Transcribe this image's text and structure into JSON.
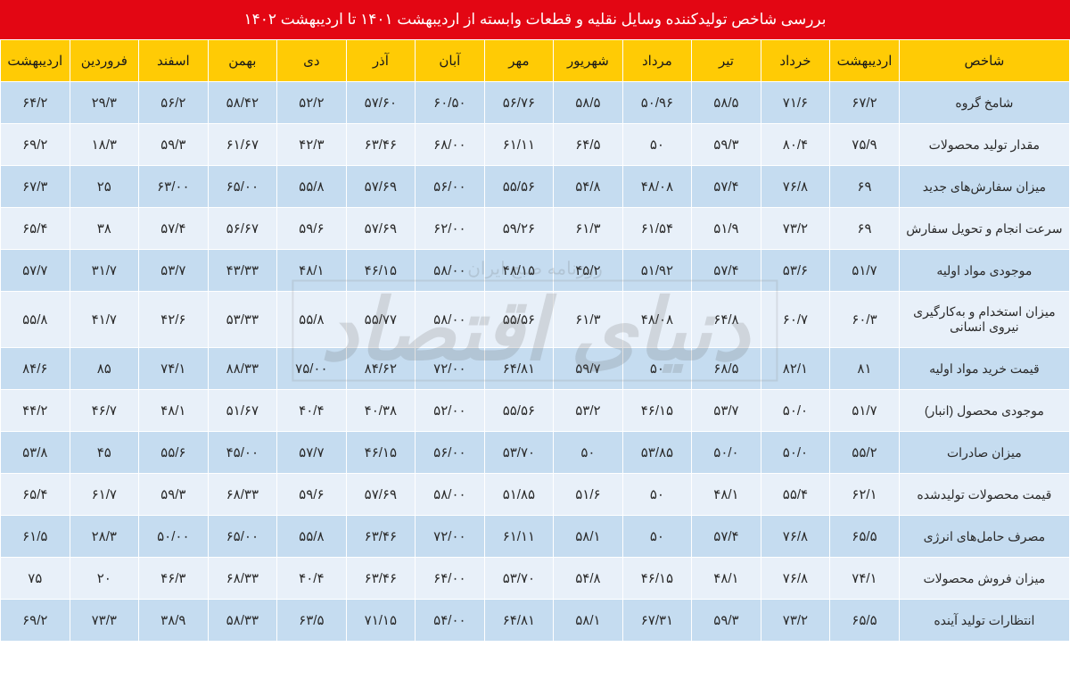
{
  "title": "بررسی شاخص تولیدکننده وسایل نقلیه و قطعات وابسته از اردیبهشت ۱۴۰۱ تا اردیبهشت ۱۴۰۲",
  "colors": {
    "title_bg": "#e30613",
    "header_bg": "#ffcb05",
    "row_odd": "#c5dcf0",
    "row_even": "#e8f0f9"
  },
  "watermark": {
    "main": "دنیای اقتصاد",
    "sub": "روزنامه صبح ایران"
  },
  "headers": [
    "شاخص",
    "اردیبهشت",
    "خرداد",
    "تیر",
    "مرداد",
    "شهریور",
    "مهر",
    "آبان",
    "آذر",
    "دی",
    "بهمن",
    "اسفند",
    "فروردین",
    "اردیبهشت"
  ],
  "rows": [
    {
      "label": "شامخ گروه",
      "values": [
        "۶۷/۲",
        "۷۱/۶",
        "۵۸/۵",
        "۵۰/۹۶",
        "۵۸/۵",
        "۵۶/۷۶",
        "۶۰/۵۰",
        "۵۷/۶۰",
        "۵۲/۲",
        "۵۸/۴۲",
        "۵۶/۲",
        "۲۹/۳",
        "۶۴/۲"
      ]
    },
    {
      "label": "مقدار تولید محصولات",
      "values": [
        "۷۵/۹",
        "۸۰/۴",
        "۵۹/۳",
        "۵۰",
        "۶۴/۵",
        "۶۱/۱۱",
        "۶۸/۰۰",
        "۶۳/۴۶",
        "۴۲/۳",
        "۶۱/۶۷",
        "۵۹/۳",
        "۱۸/۳",
        "۶۹/۲"
      ]
    },
    {
      "label": "میزان سفارش‌های جدید",
      "values": [
        "۶۹",
        "۷۶/۸",
        "۵۷/۴",
        "۴۸/۰۸",
        "۵۴/۸",
        "۵۵/۵۶",
        "۵۶/۰۰",
        "۵۷/۶۹",
        "۵۵/۸",
        "۶۵/۰۰",
        "۶۳/۰۰",
        "۲۵",
        "۶۷/۳"
      ]
    },
    {
      "label": "سرعت انجام و تحویل سفارش",
      "values": [
        "۶۹",
        "۷۳/۲",
        "۵۱/۹",
        "۶۱/۵۴",
        "۶۱/۳",
        "۵۹/۲۶",
        "۶۲/۰۰",
        "۵۷/۶۹",
        "۵۹/۶",
        "۵۶/۶۷",
        "۵۷/۴",
        "۳۸",
        "۶۵/۴"
      ]
    },
    {
      "label": "موجودی مواد اولیه",
      "values": [
        "۵۱/۷",
        "۵۳/۶",
        "۵۷/۴",
        "۵۱/۹۲",
        "۴۵/۲",
        "۴۸/۱۵",
        "۵۸/۰۰",
        "۴۶/۱۵",
        "۴۸/۱",
        "۴۳/۳۳",
        "۵۳/۷",
        "۳۱/۷",
        "۵۷/۷"
      ]
    },
    {
      "label": "میزان استخدام و به‌کارگیری نیروی انسانی",
      "values": [
        "۶۰/۳",
        "۶۰/۷",
        "۶۴/۸",
        "۴۸/۰۸",
        "۶۱/۳",
        "۵۵/۵۶",
        "۵۸/۰۰",
        "۵۵/۷۷",
        "۵۵/۸",
        "۵۳/۳۳",
        "۴۲/۶",
        "۴۱/۷",
        "۵۵/۸"
      ]
    },
    {
      "label": "قیمت خرید مواد اولیه",
      "values": [
        "۸۱",
        "۸۲/۱",
        "۶۸/۵",
        "۵۰",
        "۵۹/۷",
        "۶۴/۸۱",
        "۷۲/۰۰",
        "۸۴/۶۲",
        "۷۵/۰۰",
        "۸۸/۳۳",
        "۷۴/۱",
        "۸۵",
        "۸۴/۶"
      ]
    },
    {
      "label": "موجودی محصول (انبار)",
      "values": [
        "۵۱/۷",
        "۵۰/۰",
        "۵۳/۷",
        "۴۶/۱۵",
        "۵۳/۲",
        "۵۵/۵۶",
        "۵۲/۰۰",
        "۴۰/۳۸",
        "۴۰/۴",
        "۵۱/۶۷",
        "۴۸/۱",
        "۴۶/۷",
        "۴۴/۲"
      ]
    },
    {
      "label": "میزان صادرات",
      "values": [
        "۵۵/۲",
        "۵۰/۰",
        "۵۰/۰",
        "۵۳/۸۵",
        "۵۰",
        "۵۳/۷۰",
        "۵۶/۰۰",
        "۴۶/۱۵",
        "۵۷/۷",
        "۴۵/۰۰",
        "۵۵/۶",
        "۴۵",
        "۵۳/۸"
      ]
    },
    {
      "label": "قیمت محصولات تولیدشده",
      "values": [
        "۶۲/۱",
        "۵۵/۴",
        "۴۸/۱",
        "۵۰",
        "۵۱/۶",
        "۵۱/۸۵",
        "۵۸/۰۰",
        "۵۷/۶۹",
        "۵۹/۶",
        "۶۸/۳۳",
        "۵۹/۳",
        "۶۱/۷",
        "۶۵/۴"
      ]
    },
    {
      "label": "مصرف حامل‌های انرژی",
      "values": [
        "۶۵/۵",
        "۷۶/۸",
        "۵۷/۴",
        "۵۰",
        "۵۸/۱",
        "۶۱/۱۱",
        "۷۲/۰۰",
        "۶۳/۴۶",
        "۵۵/۸",
        "۶۵/۰۰",
        "۵۰/۰۰",
        "۲۸/۳",
        "۶۱/۵"
      ]
    },
    {
      "label": "میزان فروش محصولات",
      "values": [
        "۷۴/۱",
        "۷۶/۸",
        "۴۸/۱",
        "۴۶/۱۵",
        "۵۴/۸",
        "۵۳/۷۰",
        "۶۴/۰۰",
        "۶۳/۴۶",
        "۴۰/۴",
        "۶۸/۳۳",
        "۴۶/۳",
        "۲۰",
        "۷۵"
      ]
    },
    {
      "label": "انتظارات تولید آینده",
      "values": [
        "۶۵/۵",
        "۷۳/۲",
        "۵۹/۳",
        "۶۷/۳۱",
        "۵۸/۱",
        "۶۴/۸۱",
        "۵۴/۰۰",
        "۷۱/۱۵",
        "۶۳/۵",
        "۵۸/۳۳",
        "۳۸/۹",
        "۷۳/۳",
        "۶۹/۲"
      ]
    }
  ]
}
